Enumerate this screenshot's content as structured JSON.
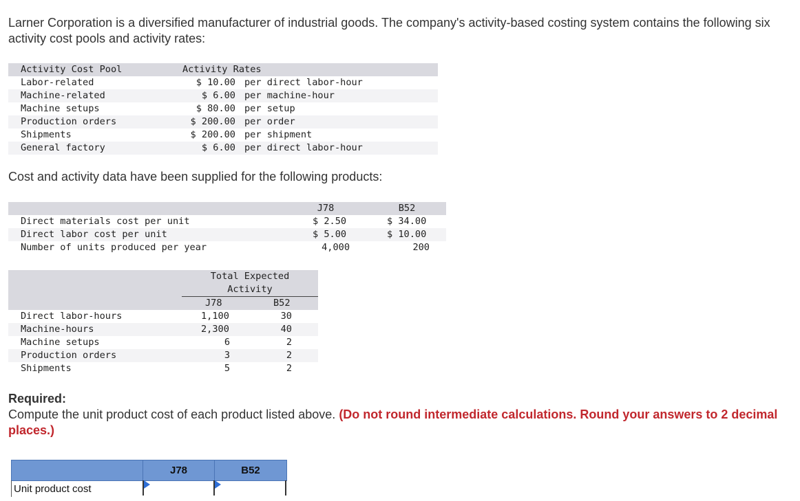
{
  "intro": "Larner Corporation is a diversified manufacturer of industrial goods. The company's activity-based costing system contains the following six activity cost pools and activity rates:",
  "rates_table": {
    "header_pool": "Activity Cost Pool",
    "header_rates": "Activity Rates",
    "rows": [
      {
        "pool": "Labor-related",
        "amount": "$ 10.00",
        "unit": "per direct labor-hour"
      },
      {
        "pool": "Machine-related",
        "amount": "$ 6.00",
        "unit": "per machine-hour"
      },
      {
        "pool": "Machine setups",
        "amount": "$ 80.00",
        "unit": "per setup"
      },
      {
        "pool": "Production orders",
        "amount": "$ 200.00",
        "unit": "per order"
      },
      {
        "pool": "Shipments",
        "amount": "$ 200.00",
        "unit": "per shipment"
      },
      {
        "pool": "General factory",
        "amount": "$ 6.00",
        "unit": "per direct labor-hour"
      }
    ]
  },
  "cost_intro": "Cost and activity data have been supplied for the following products:",
  "cost_table": {
    "col1": "J78",
    "col2": "B52",
    "rows": [
      {
        "label": "Direct materials cost per unit",
        "j78": "$ 2.50",
        "b52": "$ 34.00"
      },
      {
        "label": "Direct labor cost per unit",
        "j78": "$ 5.00",
        "b52": "$ 10.00"
      },
      {
        "label": "Number of units produced per year",
        "j78": "4,000",
        "b52": "200"
      }
    ]
  },
  "activity_table": {
    "header_line1": "Total Expected",
    "header_line2": "Activity",
    "col1": "J78",
    "col2": "B52",
    "rows": [
      {
        "label": "Direct labor-hours",
        "j78": "1,100",
        "b52": "30"
      },
      {
        "label": "Machine-hours",
        "j78": "2,300",
        "b52": "40"
      },
      {
        "label": "Machine setups",
        "j78": "6",
        "b52": "2"
      },
      {
        "label": "Production orders",
        "j78": "3",
        "b52": "2"
      },
      {
        "label": "Shipments",
        "j78": "5",
        "b52": "2"
      }
    ]
  },
  "required": {
    "title": "Required:",
    "text": "Compute the unit product cost of each product listed above.",
    "instruction": "(Do not round intermediate calculations. Round your answers to 2 decimal places.)"
  },
  "answer_table": {
    "col1": "J78",
    "col2": "B52",
    "row_label": "Unit product cost",
    "j78_value": "",
    "b52_value": ""
  },
  "colors": {
    "header_blue": "#6f97d3",
    "input_flag": "#2f6fd6",
    "instruction_red": "#c1272d"
  }
}
